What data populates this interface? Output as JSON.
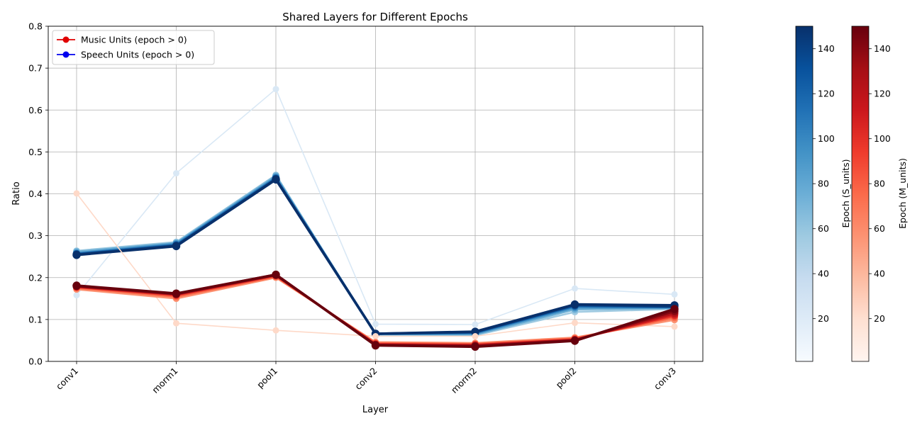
{
  "chart_data": {
    "type": "line",
    "title": "Shared Layers for Different Epochs",
    "xlabel": "Layer",
    "ylabel": "Ratio",
    "categories": [
      "conv1",
      "morm1",
      "pool1",
      "conv2",
      "morm2",
      "pool2",
      "conv3"
    ],
    "ylim": [
      0.0,
      0.8
    ],
    "yticks": [
      "0.0",
      "0.1",
      "0.2",
      "0.3",
      "0.4",
      "0.5",
      "0.6",
      "0.7",
      "0.8"
    ],
    "grid": true,
    "legend": {
      "placement": "top-left",
      "entries": [
        {
          "label": "Music Units (epoch > 0)",
          "color": "#e00000"
        },
        {
          "label": "Speech Units (epoch > 0)",
          "color": "#0000ee"
        }
      ]
    },
    "series": [
      {
        "group": "speech",
        "epoch": 1,
        "values": [
          0.158,
          0.449,
          0.65,
          0.089,
          0.088,
          0.174,
          0.16
        ]
      },
      {
        "group": "speech",
        "epoch": 40,
        "values": [
          0.264,
          0.285,
          0.445,
          0.064,
          0.062,
          0.118,
          0.125
        ]
      },
      {
        "group": "speech",
        "epoch": 60,
        "values": [
          0.262,
          0.283,
          0.443,
          0.065,
          0.064,
          0.124,
          0.127
        ]
      },
      {
        "group": "speech",
        "epoch": 80,
        "values": [
          0.259,
          0.281,
          0.44,
          0.065,
          0.066,
          0.128,
          0.128
        ]
      },
      {
        "group": "speech",
        "epoch": 100,
        "values": [
          0.257,
          0.279,
          0.438,
          0.066,
          0.068,
          0.131,
          0.129
        ]
      },
      {
        "group": "speech",
        "epoch": 120,
        "values": [
          0.256,
          0.277,
          0.436,
          0.066,
          0.069,
          0.133,
          0.13
        ]
      },
      {
        "group": "speech",
        "epoch": 140,
        "values": [
          0.255,
          0.276,
          0.435,
          0.066,
          0.07,
          0.135,
          0.131
        ]
      },
      {
        "group": "speech",
        "epoch": 150,
        "values": [
          0.254,
          0.275,
          0.434,
          0.066,
          0.071,
          0.136,
          0.134
        ]
      },
      {
        "group": "music",
        "epoch": 1,
        "values": [
          0.401,
          0.091,
          0.074,
          0.06,
          0.06,
          0.092,
          0.083
        ]
      },
      {
        "group": "music",
        "epoch": 40,
        "values": [
          0.172,
          0.15,
          0.2,
          0.046,
          0.044,
          0.057,
          0.099
        ]
      },
      {
        "group": "music",
        "epoch": 60,
        "values": [
          0.175,
          0.154,
          0.202,
          0.044,
          0.042,
          0.055,
          0.104
        ]
      },
      {
        "group": "music",
        "epoch": 80,
        "values": [
          0.177,
          0.157,
          0.204,
          0.042,
          0.04,
          0.053,
          0.108
        ]
      },
      {
        "group": "music",
        "epoch": 100,
        "values": [
          0.178,
          0.159,
          0.205,
          0.041,
          0.039,
          0.052,
          0.111
        ]
      },
      {
        "group": "music",
        "epoch": 120,
        "values": [
          0.179,
          0.16,
          0.206,
          0.04,
          0.038,
          0.051,
          0.115
        ]
      },
      {
        "group": "music",
        "epoch": 140,
        "values": [
          0.18,
          0.161,
          0.207,
          0.039,
          0.036,
          0.05,
          0.12
        ]
      },
      {
        "group": "music",
        "epoch": 150,
        "values": [
          0.181,
          0.162,
          0.207,
          0.038,
          0.035,
          0.049,
          0.125
        ]
      }
    ],
    "colorbars": [
      {
        "label": "Epoch (S_units)",
        "colormap": "Blues",
        "range": [
          1,
          150
        ],
        "ticks": [
          "20",
          "40",
          "60",
          "80",
          "100",
          "120",
          "140"
        ]
      },
      {
        "label": "Epoch (M_units)",
        "colormap": "Reds",
        "range": [
          1,
          150
        ],
        "ticks": [
          "20",
          "40",
          "60",
          "80",
          "100",
          "120",
          "140"
        ]
      }
    ]
  }
}
